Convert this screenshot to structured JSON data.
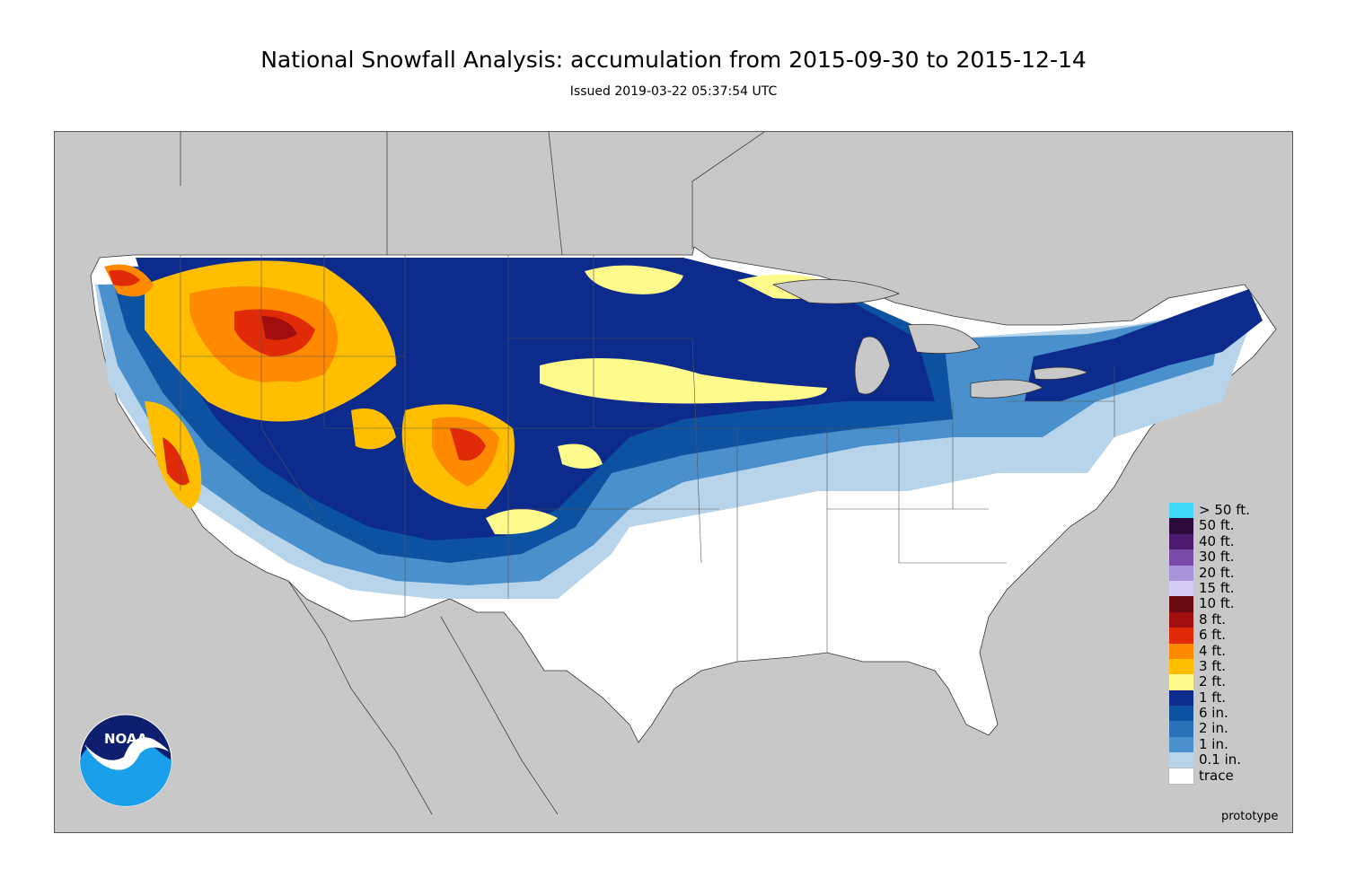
{
  "header": {
    "title": "National Snowfall Analysis: accumulation from 2015-09-30 to 2015-12-14",
    "subtitle": "Issued 2019-03-22 05:37:54 UTC"
  },
  "map": {
    "background_color": "#c8c8c8",
    "land_color": "#ffffff",
    "region": "Contiguous United States"
  },
  "legend": {
    "items": [
      {
        "label": "> 50 ft.",
        "color": "#40d8f8"
      },
      {
        "label": "50 ft.",
        "color": "#2c0a3c"
      },
      {
        "label": "40 ft.",
        "color": "#4e1a70"
      },
      {
        "label": "30 ft.",
        "color": "#7a4aa8"
      },
      {
        "label": "20 ft.",
        "color": "#a894d8"
      },
      {
        "label": "15 ft.",
        "color": "#d4ccf4"
      },
      {
        "label": "10 ft.",
        "color": "#6a0a10"
      },
      {
        "label": "8 ft.",
        "color": "#a00e10"
      },
      {
        "label": "6 ft.",
        "color": "#e02a08"
      },
      {
        "label": "4 ft.",
        "color": "#ff8a00"
      },
      {
        "label": "3 ft.",
        "color": "#ffbe00"
      },
      {
        "label": "2 ft.",
        "color": "#fffa8c"
      },
      {
        "label": "1 ft.",
        "color": "#0c2b8c"
      },
      {
        "label": "6 in.",
        "color": "#0d52a0"
      },
      {
        "label": "2 in.",
        "color": "#2a72b8"
      },
      {
        "label": "1 in.",
        "color": "#4a90cc"
      },
      {
        "label": "0.1 in.",
        "color": "#b8d4ea"
      },
      {
        "label": "trace",
        "color": "#ffffff"
      }
    ]
  },
  "footer": {
    "note": "prototype"
  },
  "logo": {
    "text": "NOAA",
    "icon": "noaa-logo-icon"
  }
}
